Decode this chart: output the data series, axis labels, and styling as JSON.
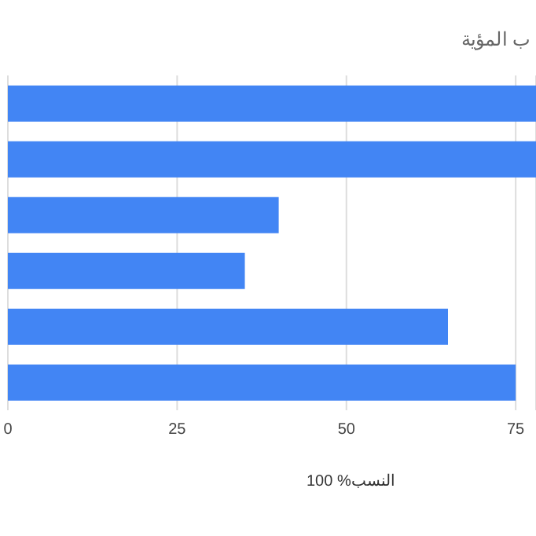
{
  "chart_data": {
    "type": "bar",
    "orientation": "horizontal",
    "title": "ب المؤية",
    "xlabel": "100 %النسب",
    "categories": [
      null,
      null,
      null,
      null,
      null,
      null
    ],
    "values": [
      78,
      78,
      40,
      35,
      65,
      75
    ],
    "color": "#4285f4",
    "xlim": [
      0,
      78
    ],
    "xticks": [
      0,
      25,
      50,
      75
    ],
    "grid": "x"
  }
}
